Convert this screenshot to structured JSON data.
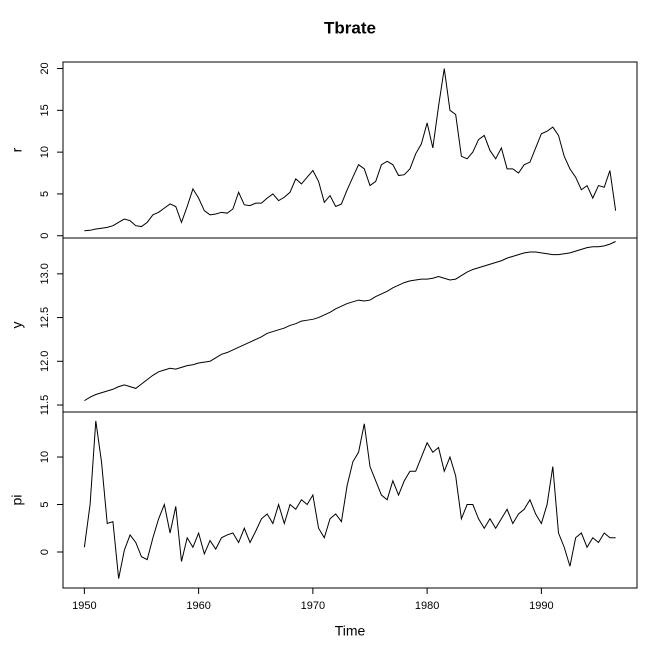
{
  "chart_data": [
    {
      "type": "line",
      "title": "Tbrate",
      "ylabel": "r",
      "color": "#000000",
      "xlim": [
        1948.13,
        1998.37
      ],
      "ylim": [
        -0.27,
        20.78
      ],
      "yticks": [
        0,
        5,
        10,
        15,
        20
      ],
      "x": [
        1950,
        1950.5,
        1951,
        1951.5,
        1952,
        1952.5,
        1953,
        1953.5,
        1954,
        1954.5,
        1955,
        1955.5,
        1956,
        1956.5,
        1957,
        1957.5,
        1958,
        1958.5,
        1959,
        1959.5,
        1960,
        1960.5,
        1961,
        1961.5,
        1962,
        1962.5,
        1963,
        1963.5,
        1964,
        1964.5,
        1965,
        1965.5,
        1966,
        1966.5,
        1967,
        1967.5,
        1968,
        1968.5,
        1969,
        1969.5,
        1970,
        1970.5,
        1971,
        1971.5,
        1972,
        1972.5,
        1973,
        1973.5,
        1974,
        1974.5,
        1975,
        1975.5,
        1976,
        1976.5,
        1977,
        1977.5,
        1978,
        1978.5,
        1979,
        1979.5,
        1980,
        1980.5,
        1981,
        1981.5,
        1982,
        1982.5,
        1983,
        1983.5,
        1984,
        1984.5,
        1985,
        1985.5,
        1986,
        1986.5,
        1987,
        1987.5,
        1988,
        1988.5,
        1989,
        1989.5,
        1990,
        1990.5,
        1991,
        1991.5,
        1992,
        1992.5,
        1993,
        1993.5,
        1994,
        1994.5,
        1995,
        1995.5,
        1996,
        1996.5
      ],
      "values": [
        0.6,
        0.65,
        0.8,
        0.9,
        1.0,
        1.2,
        1.6,
        2.0,
        1.8,
        1.2,
        1.1,
        1.6,
        2.5,
        2.8,
        3.3,
        3.8,
        3.5,
        1.6,
        3.5,
        5.6,
        4.5,
        3.0,
        2.5,
        2.6,
        2.8,
        2.7,
        3.2,
        5.2,
        3.7,
        3.6,
        3.9,
        3.9,
        4.5,
        5.0,
        4.2,
        4.6,
        5.2,
        6.8,
        6.2,
        7.0,
        7.8,
        6.5,
        4.0,
        4.8,
        3.5,
        3.8,
        5.5,
        7.0,
        8.5,
        8.0,
        6.0,
        6.5,
        8.5,
        8.9,
        8.5,
        7.2,
        7.3,
        8.0,
        9.8,
        11.0,
        13.5,
        10.5,
        15.5,
        20.0,
        15.0,
        14.5,
        9.5,
        9.2,
        10.0,
        11.5,
        12.0,
        10.2,
        9.2,
        10.5,
        8.0,
        8.0,
        7.5,
        8.5,
        8.8,
        10.5,
        12.2,
        12.5,
        13.0,
        12.0,
        9.5,
        8.0,
        7.0,
        5.5,
        6.0,
        4.5,
        6.0,
        5.8,
        7.8,
        3.0
      ]
    },
    {
      "type": "line",
      "ylabel": "y",
      "color": "#000000",
      "xlim": [
        1948.13,
        1998.37
      ],
      "ylim": [
        11.42,
        13.41
      ],
      "yticks": [
        11.5,
        {
          "value": 12,
          "label": "12.0"
        },
        12.5,
        {
          "value": 13,
          "label": "13.0"
        }
      ],
      "x": [
        1950,
        1950.5,
        1951,
        1951.5,
        1952,
        1952.5,
        1953,
        1953.5,
        1954,
        1954.5,
        1955,
        1955.5,
        1956,
        1956.5,
        1957,
        1957.5,
        1958,
        1958.5,
        1959,
        1959.5,
        1960,
        1960.5,
        1961,
        1961.5,
        1962,
        1962.5,
        1963,
        1963.5,
        1964,
        1964.5,
        1965,
        1965.5,
        1966,
        1966.5,
        1967,
        1967.5,
        1968,
        1968.5,
        1969,
        1969.5,
        1970,
        1970.5,
        1971,
        1971.5,
        1972,
        1972.5,
        1973,
        1973.5,
        1974,
        1974.5,
        1975,
        1975.5,
        1976,
        1976.5,
        1977,
        1977.5,
        1978,
        1978.5,
        1979,
        1979.5,
        1980,
        1980.5,
        1981,
        1981.5,
        1982,
        1982.5,
        1983,
        1983.5,
        1984,
        1984.5,
        1985,
        1985.5,
        1986,
        1986.5,
        1987,
        1987.5,
        1988,
        1988.5,
        1989,
        1989.5,
        1990,
        1990.5,
        1991,
        1991.5,
        1992,
        1992.5,
        1993,
        1993.5,
        1994,
        1994.5,
        1995,
        1995.5,
        1996,
        1996.5
      ],
      "values": [
        11.55,
        11.59,
        11.62,
        11.64,
        11.66,
        11.68,
        11.71,
        11.73,
        11.71,
        11.69,
        11.74,
        11.79,
        11.84,
        11.88,
        11.9,
        11.92,
        11.91,
        11.93,
        11.95,
        11.96,
        11.98,
        11.99,
        12.0,
        12.04,
        12.08,
        12.1,
        12.13,
        12.16,
        12.19,
        12.22,
        12.25,
        12.28,
        12.32,
        12.34,
        12.36,
        12.38,
        12.41,
        12.43,
        12.46,
        12.47,
        12.48,
        12.5,
        12.53,
        12.56,
        12.6,
        12.63,
        12.66,
        12.68,
        12.7,
        12.69,
        12.7,
        12.74,
        12.77,
        12.8,
        12.84,
        12.87,
        12.9,
        12.92,
        12.93,
        12.94,
        12.94,
        12.95,
        12.97,
        12.95,
        12.93,
        12.94,
        12.98,
        13.02,
        13.05,
        13.07,
        13.09,
        13.11,
        13.13,
        13.15,
        13.18,
        13.2,
        13.22,
        13.24,
        13.25,
        13.25,
        13.24,
        13.23,
        13.22,
        13.22,
        13.23,
        13.24,
        13.26,
        13.28,
        13.3,
        13.31,
        13.31,
        13.32,
        13.34,
        13.37
      ]
    },
    {
      "type": "line",
      "ylabel": "pi",
      "xlabel": "Time",
      "color": "#000000",
      "xlim": [
        1948.13,
        1998.37
      ],
      "ylim": [
        -3.79,
        14.74
      ],
      "yticks": [
        0,
        5,
        10
      ],
      "xticks": [
        1950,
        1960,
        1970,
        1980,
        1990
      ],
      "x": [
        1950,
        1950.5,
        1951,
        1951.5,
        1952,
        1952.5,
        1953,
        1953.5,
        1954,
        1954.5,
        1955,
        1955.5,
        1956,
        1956.5,
        1957,
        1957.5,
        1958,
        1958.5,
        1959,
        1959.5,
        1960,
        1960.5,
        1961,
        1961.5,
        1962,
        1962.5,
        1963,
        1963.5,
        1964,
        1964.5,
        1965,
        1965.5,
        1966,
        1966.5,
        1967,
        1967.5,
        1968,
        1968.5,
        1969,
        1969.5,
        1970,
        1970.5,
        1971,
        1971.5,
        1972,
        1972.5,
        1973,
        1973.5,
        1974,
        1974.5,
        1975,
        1975.5,
        1976,
        1976.5,
        1977,
        1977.5,
        1978,
        1978.5,
        1979,
        1979.5,
        1980,
        1980.5,
        1981,
        1981.5,
        1982,
        1982.5,
        1983,
        1983.5,
        1984,
        1984.5,
        1985,
        1985.5,
        1986,
        1986.5,
        1987,
        1987.5,
        1988,
        1988.5,
        1989,
        1989.5,
        1990,
        1990.5,
        1991,
        1991.5,
        1992,
        1992.5,
        1993,
        1993.5,
        1994,
        1994.5,
        1995,
        1995.5,
        1996,
        1996.5
      ],
      "values": [
        0.5,
        5.0,
        13.8,
        9.5,
        3.0,
        3.2,
        -2.8,
        0.2,
        1.8,
        1.0,
        -0.5,
        -0.8,
        1.5,
        3.5,
        5.0,
        2.0,
        4.8,
        -1.0,
        1.5,
        0.5,
        2.0,
        -0.2,
        1.2,
        0.3,
        1.5,
        1.8,
        2.0,
        1.0,
        2.5,
        1.0,
        2.2,
        3.5,
        4.0,
        3.0,
        5.0,
        3.0,
        5.0,
        4.5,
        5.5,
        5.0,
        6.0,
        2.5,
        1.5,
        3.5,
        4.0,
        3.2,
        7.0,
        9.5,
        10.5,
        13.5,
        9.0,
        7.5,
        6.0,
        5.5,
        7.5,
        6.0,
        7.5,
        8.5,
        8.5,
        10.0,
        11.5,
        10.5,
        11.0,
        8.5,
        10.0,
        8.0,
        3.5,
        5.0,
        5.0,
        3.5,
        2.5,
        3.5,
        2.5,
        3.5,
        4.5,
        3.0,
        4.0,
        4.5,
        5.5,
        4.0,
        3.0,
        5.0,
        9.0,
        2.0,
        0.5,
        -1.5,
        1.5,
        2.0,
        0.5,
        1.5,
        1.0,
        2.0,
        1.5,
        1.5
      ]
    }
  ]
}
